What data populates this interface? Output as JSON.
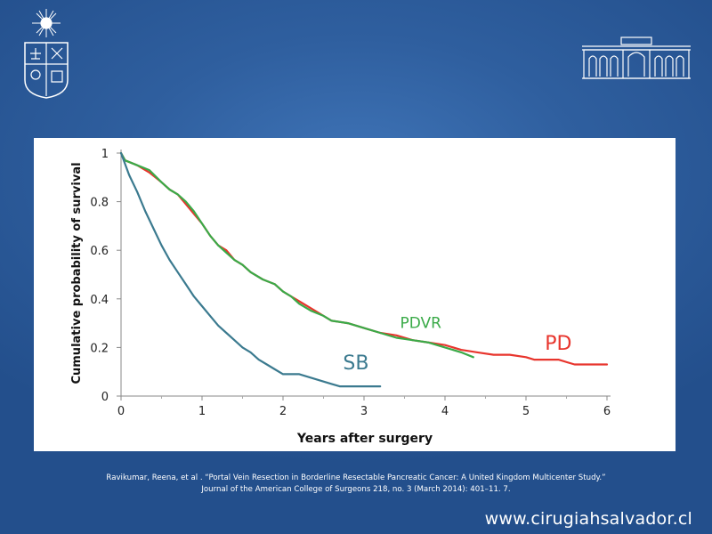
{
  "citation": {
    "line1": "Ravikumar, Reena, et al . “Portal Vein Resection in Borderline Resectable Pancreatic Cancer: A United Kingdom Multicenter Study.”",
    "line2": "Journal of the American College of Surgeons 218, no. 3 (March 2014): 401–11. 7."
  },
  "website": "www.cirugiahsalvador.cl",
  "colors": {
    "background": "#2f5f9f",
    "pd": "#e8352d",
    "pdvr": "#3aaa48",
    "sb": "#3b7a8f"
  },
  "logos": {
    "left": "university-crest-icon",
    "right": "hospital-building-icon"
  },
  "chart_data": {
    "type": "line",
    "title": "",
    "xlabel": "Years after surgery",
    "ylabel": "Cumulative probability of survival",
    "xlim": [
      0,
      6
    ],
    "ylim": [
      0,
      1
    ],
    "xticks": [
      "0",
      "1",
      "2",
      "3",
      "4",
      "5",
      "6"
    ],
    "yticks": [
      "0",
      "0.2",
      "0.4",
      "0.6",
      "0.8",
      "1"
    ],
    "grid": false,
    "legend": "inline labels",
    "series": [
      {
        "name": "PD",
        "label_at": [
          5.4,
          0.19
        ],
        "points": [
          [
            0,
            1
          ],
          [
            0.05,
            0.97
          ],
          [
            0.2,
            0.95
          ],
          [
            0.35,
            0.92
          ],
          [
            0.5,
            0.88
          ],
          [
            0.6,
            0.85
          ],
          [
            0.7,
            0.83
          ],
          [
            0.8,
            0.79
          ],
          [
            0.9,
            0.75
          ],
          [
            1.0,
            0.71
          ],
          [
            1.1,
            0.66
          ],
          [
            1.2,
            0.62
          ],
          [
            1.3,
            0.6
          ],
          [
            1.4,
            0.56
          ],
          [
            1.5,
            0.54
          ],
          [
            1.6,
            0.51
          ],
          [
            1.75,
            0.48
          ],
          [
            1.9,
            0.46
          ],
          [
            2.0,
            0.43
          ],
          [
            2.1,
            0.41
          ],
          [
            2.2,
            0.39
          ],
          [
            2.35,
            0.36
          ],
          [
            2.5,
            0.33
          ],
          [
            2.6,
            0.31
          ],
          [
            2.8,
            0.3
          ],
          [
            3.0,
            0.28
          ],
          [
            3.2,
            0.26
          ],
          [
            3.4,
            0.25
          ],
          [
            3.6,
            0.23
          ],
          [
            3.8,
            0.22
          ],
          [
            4.0,
            0.21
          ],
          [
            4.2,
            0.19
          ],
          [
            4.4,
            0.18
          ],
          [
            4.6,
            0.17
          ],
          [
            4.8,
            0.17
          ],
          [
            5.0,
            0.16
          ],
          [
            5.1,
            0.15
          ],
          [
            5.4,
            0.15
          ],
          [
            5.6,
            0.13
          ],
          [
            5.8,
            0.13
          ],
          [
            6.0,
            0.13
          ]
        ]
      },
      {
        "name": "PDVR",
        "label_at": [
          3.7,
          0.28
        ],
        "points": [
          [
            0,
            1
          ],
          [
            0.05,
            0.97
          ],
          [
            0.2,
            0.95
          ],
          [
            0.35,
            0.93
          ],
          [
            0.5,
            0.88
          ],
          [
            0.6,
            0.85
          ],
          [
            0.7,
            0.83
          ],
          [
            0.8,
            0.8
          ],
          [
            0.9,
            0.76
          ],
          [
            1.0,
            0.71
          ],
          [
            1.1,
            0.66
          ],
          [
            1.2,
            0.62
          ],
          [
            1.3,
            0.59
          ],
          [
            1.4,
            0.56
          ],
          [
            1.5,
            0.54
          ],
          [
            1.6,
            0.51
          ],
          [
            1.75,
            0.48
          ],
          [
            1.9,
            0.46
          ],
          [
            2.0,
            0.43
          ],
          [
            2.1,
            0.41
          ],
          [
            2.2,
            0.38
          ],
          [
            2.35,
            0.35
          ],
          [
            2.5,
            0.33
          ],
          [
            2.6,
            0.31
          ],
          [
            2.8,
            0.3
          ],
          [
            3.0,
            0.28
          ],
          [
            3.2,
            0.26
          ],
          [
            3.4,
            0.24
          ],
          [
            3.6,
            0.23
          ],
          [
            3.8,
            0.22
          ],
          [
            4.0,
            0.2
          ],
          [
            4.2,
            0.18
          ],
          [
            4.35,
            0.16
          ]
        ]
      },
      {
        "name": "SB",
        "label_at": [
          2.9,
          0.11
        ],
        "points": [
          [
            0,
            1
          ],
          [
            0.1,
            0.91
          ],
          [
            0.2,
            0.84
          ],
          [
            0.3,
            0.76
          ],
          [
            0.4,
            0.69
          ],
          [
            0.5,
            0.62
          ],
          [
            0.6,
            0.56
          ],
          [
            0.7,
            0.51
          ],
          [
            0.8,
            0.46
          ],
          [
            0.9,
            0.41
          ],
          [
            1.0,
            0.37
          ],
          [
            1.1,
            0.33
          ],
          [
            1.2,
            0.29
          ],
          [
            1.3,
            0.26
          ],
          [
            1.4,
            0.23
          ],
          [
            1.5,
            0.2
          ],
          [
            1.6,
            0.18
          ],
          [
            1.7,
            0.15
          ],
          [
            1.8,
            0.13
          ],
          [
            1.9,
            0.11
          ],
          [
            2.0,
            0.09
          ],
          [
            2.2,
            0.09
          ],
          [
            2.4,
            0.07
          ],
          [
            2.6,
            0.05
          ],
          [
            2.7,
            0.04
          ],
          [
            3.0,
            0.04
          ],
          [
            3.2,
            0.04
          ]
        ]
      }
    ]
  }
}
